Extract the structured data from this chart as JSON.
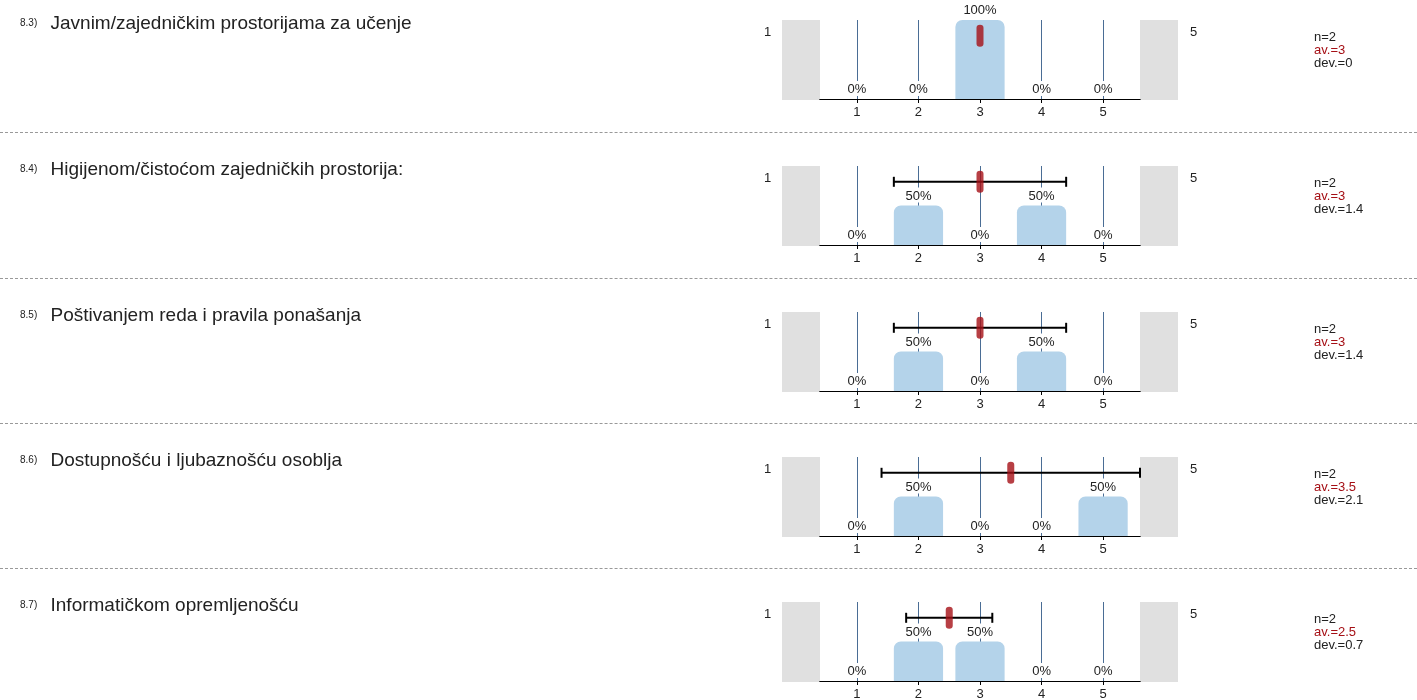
{
  "chart_data": [
    {
      "type": "bar",
      "title": "$^{8.3)}$ Javnim/zajedničkim prostorijama za učenje",
      "xlim": [
        0.4,
        5.6
      ],
      "xticks": [
        1,
        2,
        3,
        4,
        5
      ],
      "ylim": [
        0,
        100
      ],
      "tick_labels": "x",
      "grid": "x",
      "annotations": [
        "1",
        "5",
        "n=2",
        "av.=3",
        "dev.=0"
      ],
      "series": [
        {
          "color": "#b4d3ea",
          "x": [
            1,
            2,
            3,
            4,
            5
          ],
          "values": [
            0,
            0,
            100,
            0,
            0
          ],
          "value_labels": [
            "0%",
            "0%",
            "100%",
            "0%",
            "0%"
          ]
        },
        {
          "type": "scatter",
          "color": "#a50f15",
          "x": [
            3
          ],
          "values": [
            80
          ],
          "xerrors": [
            0
          ]
        }
      ]
    },
    {
      "type": "bar",
      "title": "$^{8.4)}$ Higijenom/čistoćom zajedničkih prostorija:",
      "xlim": [
        0.4,
        5.6
      ],
      "xticks": [
        1,
        2,
        3,
        4,
        5
      ],
      "ylim": [
        0,
        100
      ],
      "tick_labels": "x",
      "grid": "x",
      "annotations": [
        "1",
        "5",
        "n=2",
        "av.=3",
        "dev.=1.4"
      ],
      "series": [
        {
          "color": "#b4d3ea",
          "x": [
            1,
            2,
            3,
            4,
            5
          ],
          "values": [
            0,
            50,
            0,
            50,
            0
          ],
          "value_labels": [
            "0%",
            "50%",
            "0%",
            "50%",
            "0%"
          ]
        },
        {
          "type": "scatter",
          "color": "#a50f15",
          "x": [
            3
          ],
          "values": [
            80
          ],
          "xerrors": [
            1.4
          ]
        }
      ]
    },
    {
      "type": "bar",
      "title": "$^{8.5)}$ Poštivanjem reda i pravila ponašanja",
      "xlim": [
        0.4,
        5.6
      ],
      "xticks": [
        1,
        2,
        3,
        4,
        5
      ],
      "ylim": [
        0,
        100
      ],
      "tick_labels": "x",
      "grid": "x",
      "annotations": [
        "1",
        "5",
        "n=2",
        "av.=3",
        "dev.=1.4"
      ],
      "series": [
        {
          "color": "#b4d3ea",
          "x": [
            1,
            2,
            3,
            4,
            5
          ],
          "values": [
            0,
            50,
            0,
            50,
            0
          ],
          "value_labels": [
            "0%",
            "50%",
            "0%",
            "50%",
            "0%"
          ]
        },
        {
          "type": "scatter",
          "color": "#a50f15",
          "x": [
            3
          ],
          "values": [
            80
          ],
          "xerrors": [
            1.4
          ]
        }
      ]
    },
    {
      "type": "bar",
      "title": "$^{8.6)}$ Dostupnošću i ljubaznošću osoblja",
      "xlim": [
        0.4,
        5.6
      ],
      "xticks": [
        1,
        2,
        3,
        4,
        5
      ],
      "ylim": [
        0,
        100
      ],
      "tick_labels": "x",
      "grid": "x",
      "annotations": [
        "1",
        "5",
        "n=2",
        "av.=3.5",
        "dev.=2.1"
      ],
      "series": [
        {
          "color": "#b4d3ea",
          "x": [
            1,
            2,
            3,
            4,
            5
          ],
          "values": [
            0,
            50,
            0,
            0,
            50
          ],
          "value_labels": [
            "0%",
            "50%",
            "0%",
            "0%",
            "50%"
          ]
        },
        {
          "type": "scatter",
          "color": "#a50f15",
          "x": [
            3.5
          ],
          "values": [
            80
          ],
          "xerrors": [
            2.1
          ]
        }
      ]
    },
    {
      "type": "bar",
      "title": "$^{8.7)}$ Informatičkom opremljenošću",
      "xlim": [
        0.4,
        5.6
      ],
      "xticks": [
        1,
        2,
        3,
        4,
        5
      ],
      "ylim": [
        0,
        100
      ],
      "tick_labels": "x",
      "grid": "x",
      "annotations": [
        "1",
        "5",
        "n=2",
        "av.=2.5",
        "dev.=0.7"
      ],
      "series": [
        {
          "color": "#b4d3ea",
          "x": [
            1,
            2,
            3,
            4,
            5
          ],
          "values": [
            0,
            50,
            50,
            0,
            0
          ],
          "value_labels": [
            "0%",
            "50%",
            "50%",
            "0%",
            "0%"
          ]
        },
        {
          "type": "scatter",
          "color": "#a50f15",
          "x": [
            2.5
          ],
          "values": [
            80
          ],
          "xerrors": [
            0.7
          ]
        }
      ]
    }
  ]
}
